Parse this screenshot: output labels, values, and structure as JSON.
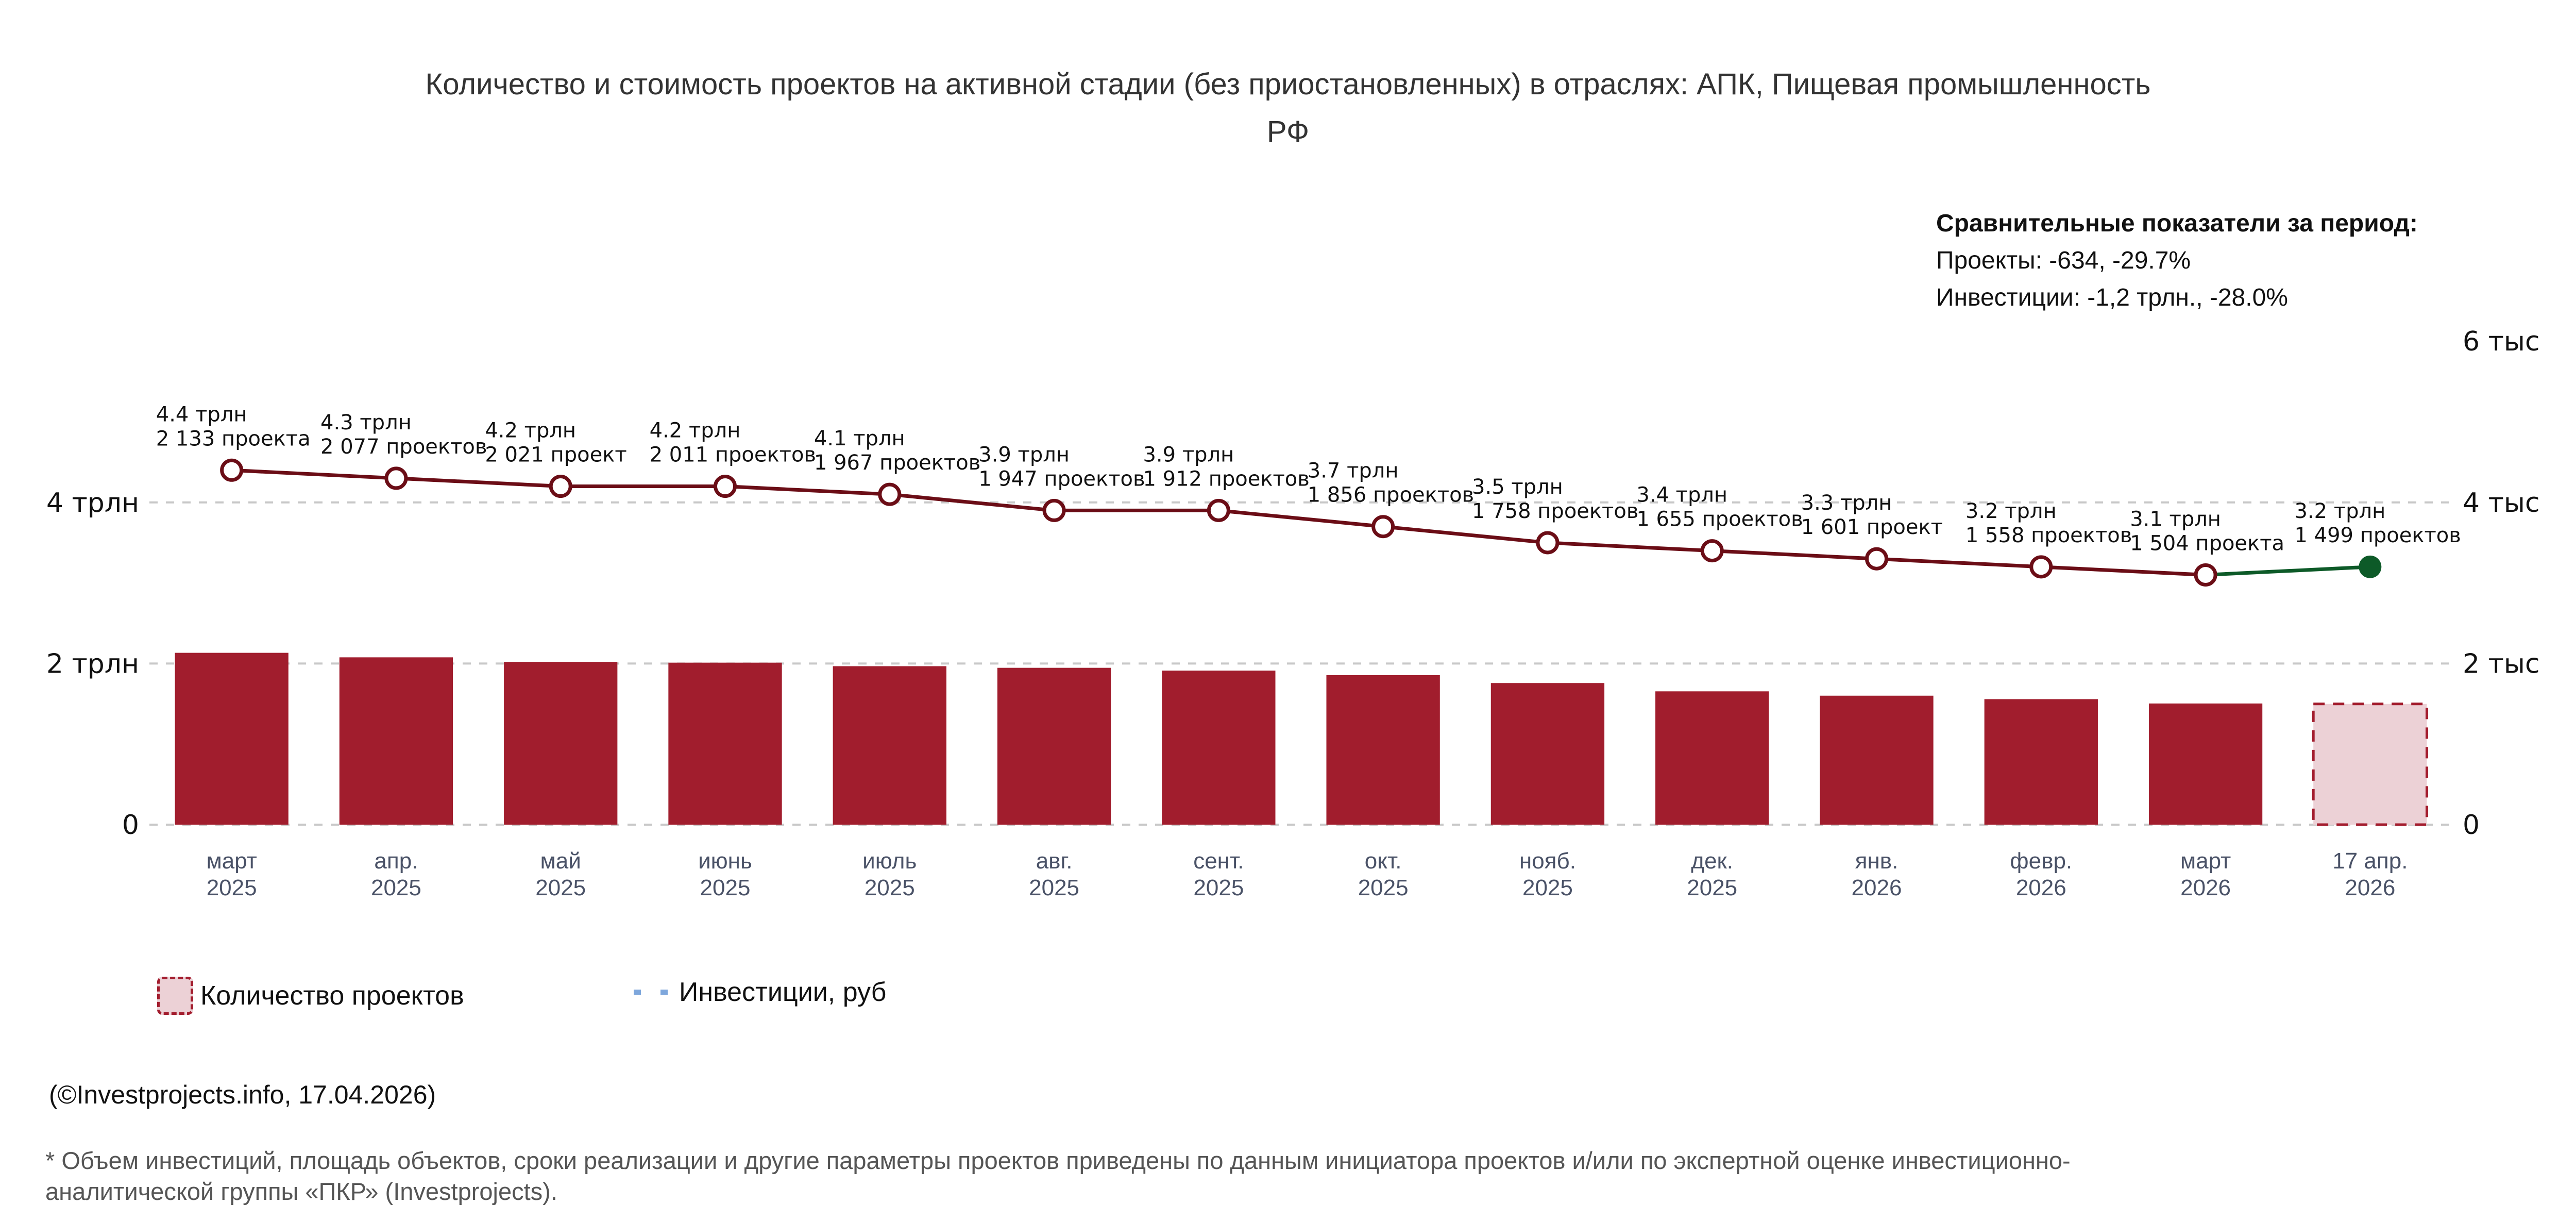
{
  "title": {
    "line1": "Количество и стоимость проектов на активной стадии (без приостановленных) в отраслях: АПК, Пищевая промышленность",
    "line2": "РФ"
  },
  "summary": {
    "heading": "Сравнительные показатели за период:",
    "projects": "Проекты: -634, -29.7%",
    "investments": "Инвестиции: -1,2 трлн., -28.0%"
  },
  "legend": {
    "count_label": "Количество проектов",
    "invest_label": "Инвестиции, руб"
  },
  "credit": "(©Investprojects.info, 17.04.2026)",
  "footnote": "* Объем инвестиций, площадь объектов, сроки реализации и другие параметры проектов приведены по данным инициатора проектов и/или по экспертной оценке инвестиционно-аналитической группы «ПКР» (Investprojects).",
  "colors": {
    "bar": "#a11d2d",
    "bar_partial_fill": "#ecd1d6",
    "bar_partial_border": "#a31d2e",
    "line": "#6b0d16",
    "line_last": "#0d5a28",
    "grid": "#c8c8c8",
    "legend_line": "#7ea7dc"
  },
  "chart_data": {
    "type": "bar",
    "title": "Количество и стоимость проектов на активной стадии (без приостановленных) в отраслях: АПК, Пищевая промышленность РФ",
    "xlabel": "",
    "categories": [
      {
        "month": "март",
        "year": "2025"
      },
      {
        "month": "апр.",
        "year": "2025"
      },
      {
        "month": "май",
        "year": "2025"
      },
      {
        "month": "июнь",
        "year": "2025"
      },
      {
        "month": "июль",
        "year": "2025"
      },
      {
        "month": "авг.",
        "year": "2025"
      },
      {
        "month": "сент.",
        "year": "2025"
      },
      {
        "month": "окт.",
        "year": "2025"
      },
      {
        "month": "нояб.",
        "year": "2025"
      },
      {
        "month": "дек.",
        "year": "2025"
      },
      {
        "month": "янв.",
        "year": "2026"
      },
      {
        "month": "февр.",
        "year": "2026"
      },
      {
        "month": "март",
        "year": "2026"
      },
      {
        "month": "17 апр.",
        "year": "2026"
      }
    ],
    "series": [
      {
        "name": "Количество проектов",
        "type": "bar",
        "axis": "right",
        "values": [
          2133,
          2077,
          2021,
          2011,
          1967,
          1947,
          1912,
          1856,
          1758,
          1655,
          1601,
          1558,
          1504,
          1499
        ],
        "labels": [
          "2 133 проекта",
          "2 077 проектов",
          "2 021 проект",
          "2 011 проектов",
          "1 967 проектов",
          "1 947 проектов",
          "1 912 проектов",
          "1 856 проектов",
          "1 758 проектов",
          "1 655 проектов",
          "1 601 проект",
          "1 558 проектов",
          "1 504 проекта",
          "1 499 проектов"
        ],
        "partial_last": true
      },
      {
        "name": "Инвестиции, руб",
        "type": "line",
        "axis": "left",
        "unit": "трлн",
        "values": [
          4.4,
          4.3,
          4.2,
          4.2,
          4.1,
          3.9,
          3.9,
          3.7,
          3.5,
          3.4,
          3.3,
          3.2,
          3.1,
          3.2
        ],
        "labels": [
          "4.4 трлн",
          "4.3 трлн",
          "4.2 трлн",
          "4.2 трлн",
          "4.1 трлн",
          "3.9 трлн",
          "3.9 трлн",
          "3.7 трлн",
          "3.5 трлн",
          "3.4 трлн",
          "3.3 трлн",
          "3.2 трлн",
          "3.1 трлн",
          "3.2 трлн"
        ]
      }
    ],
    "left_axis": {
      "ticks": [
        0,
        2,
        4
      ],
      "tick_labels": [
        "0",
        "2 трлн",
        "4 трлн"
      ],
      "range": [
        0,
        6
      ]
    },
    "right_axis": {
      "ticks": [
        0,
        2000,
        4000,
        6000
      ],
      "tick_labels": [
        "0",
        "2 тыс",
        "4 тыс",
        "6 тыс"
      ],
      "range": [
        0,
        6000
      ]
    },
    "grid": true,
    "legend_position": "bottom-left"
  }
}
